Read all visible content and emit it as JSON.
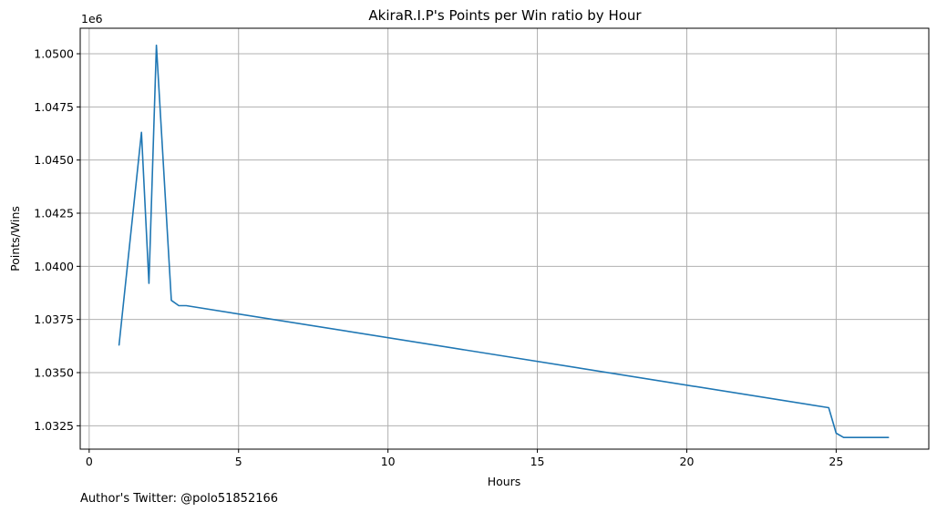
{
  "chart_data": {
    "type": "line",
    "title": "AkiraR.I.P's Points per Win ratio by Hour",
    "xlabel": "Hours",
    "ylabel": "Points/Wins",
    "offset_text": "1e6",
    "xlim": [
      -0.3,
      28.1
    ],
    "ylim": [
      1031400,
      1051200
    ],
    "xticks": [
      0,
      5,
      10,
      15,
      20,
      25
    ],
    "xtick_labels": [
      "0",
      "5",
      "10",
      "15",
      "20",
      "25"
    ],
    "yticks": [
      1032500,
      1035000,
      1037500,
      1040000,
      1042500,
      1045000,
      1047500,
      1050000
    ],
    "ytick_labels": [
      "1.0325",
      "1.0350",
      "1.0375",
      "1.0400",
      "1.0425",
      "1.0450",
      "1.0475",
      "1.0500"
    ],
    "grid": true,
    "series": [
      {
        "color": "#1f77b4",
        "x": [
          1.0,
          1.75,
          2.0,
          2.25,
          2.75,
          3.0,
          3.25,
          24.75,
          25.0,
          25.25,
          26.75
        ],
        "y": [
          1036300,
          1046300,
          1039200,
          1050400,
          1038400,
          1038150,
          1038150,
          1033350,
          1032150,
          1031950,
          1031950
        ]
      }
    ]
  },
  "footer": {
    "text": "Author's Twitter: @polo51852166"
  }
}
